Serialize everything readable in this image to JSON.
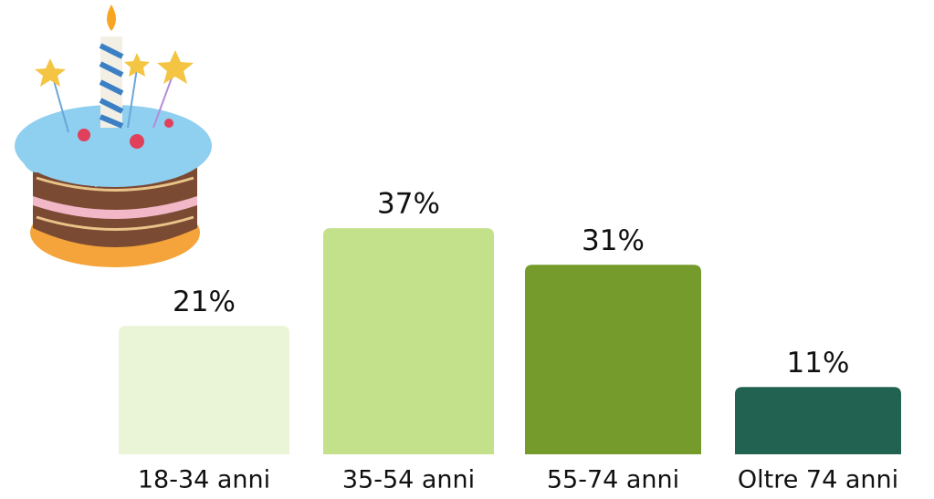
{
  "chart_data": {
    "type": "bar",
    "categories": [
      "18-34 anni",
      "35-54 anni",
      "55-74 anni",
      "Oltre 74 anni"
    ],
    "values": [
      21,
      37,
      31,
      11
    ],
    "value_labels": [
      "21%",
      "37%",
      "31%",
      "11%"
    ],
    "colors": [
      "#eaf5d8",
      "#c3e08a",
      "#749b2c",
      "#226251"
    ]
  }
}
